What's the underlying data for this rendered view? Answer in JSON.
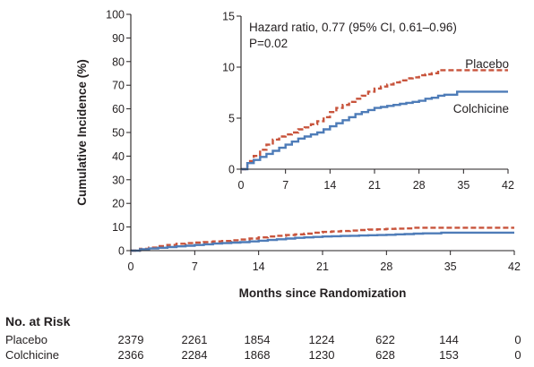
{
  "chart_data": {
    "type": "line",
    "main": {
      "xlabel": "Months since Randomization",
      "ylabel": "Cumulative Incidence (%)",
      "xlim": [
        0,
        42
      ],
      "ylim": [
        0,
        100
      ],
      "xticks": [
        0,
        7,
        14,
        21,
        28,
        35,
        42
      ],
      "yticks": [
        0,
        10,
        20,
        30,
        40,
        50,
        60,
        70,
        80,
        90,
        100
      ],
      "grid": false
    },
    "inset": {
      "xlim": [
        0,
        42
      ],
      "ylim": [
        0,
        15
      ],
      "xticks": [
        0,
        7,
        14,
        21,
        28,
        35,
        42
      ],
      "yticks": [
        0,
        5,
        10,
        15
      ],
      "annotation_lines": [
        "Hazard ratio, 0.77 (95% CI, 0.61–0.96)",
        "P=0.02"
      ],
      "grid": false
    },
    "series": [
      {
        "name": "Placebo",
        "color": "#c8543c",
        "dash": "dashed",
        "x": [
          0,
          1,
          2,
          3,
          4,
          5,
          6,
          7,
          8,
          9,
          10,
          11,
          12,
          13,
          14,
          15,
          16,
          17,
          18,
          19,
          20,
          21,
          22,
          23,
          24,
          25,
          26,
          27,
          28,
          29,
          30,
          31,
          32,
          33,
          34,
          35,
          36,
          37,
          38,
          39,
          40,
          41,
          42
        ],
        "y": [
          0,
          0.8,
          1.3,
          1.9,
          2.4,
          2.9,
          3.2,
          3.4,
          3.6,
          3.9,
          4.1,
          4.4,
          4.7,
          5.1,
          5.6,
          6.0,
          6.3,
          6.6,
          6.9,
          7.2,
          7.6,
          7.9,
          8.1,
          8.3,
          8.5,
          8.7,
          8.9,
          9.0,
          9.2,
          9.3,
          9.4,
          9.7,
          9.7,
          9.7,
          9.7,
          9.7,
          9.7,
          9.7,
          9.7,
          9.7,
          9.7,
          9.7,
          9.7
        ]
      },
      {
        "name": "Colchicine",
        "color": "#4e7cb8",
        "dash": "solid",
        "x": [
          0,
          1,
          2,
          3,
          4,
          5,
          6,
          7,
          8,
          9,
          10,
          11,
          12,
          13,
          14,
          15,
          16,
          17,
          18,
          19,
          20,
          21,
          22,
          23,
          24,
          25,
          26,
          27,
          28,
          29,
          30,
          31,
          32,
          33,
          34,
          35,
          36,
          37,
          38,
          39,
          40,
          41,
          42
        ],
        "y": [
          0,
          0.6,
          0.9,
          1.2,
          1.5,
          1.8,
          2.1,
          2.4,
          2.7,
          3.0,
          3.2,
          3.4,
          3.6,
          3.9,
          4.2,
          4.5,
          4.8,
          5.1,
          5.4,
          5.6,
          5.8,
          6.0,
          6.1,
          6.2,
          6.3,
          6.4,
          6.5,
          6.6,
          6.7,
          6.9,
          7.0,
          7.2,
          7.3,
          7.3,
          7.6,
          7.6,
          7.6,
          7.6,
          7.6,
          7.6,
          7.6,
          7.6,
          7.6
        ]
      }
    ]
  },
  "risk_table": {
    "title": "No. at Risk",
    "rows": [
      {
        "label": "Placebo",
        "values": [
          "2379",
          "2261",
          "1854",
          "1224",
          "622",
          "144",
          "0"
        ]
      },
      {
        "label": "Colchicine",
        "values": [
          "2366",
          "2284",
          "1868",
          "1230",
          "628",
          "153",
          "0"
        ]
      }
    ]
  }
}
